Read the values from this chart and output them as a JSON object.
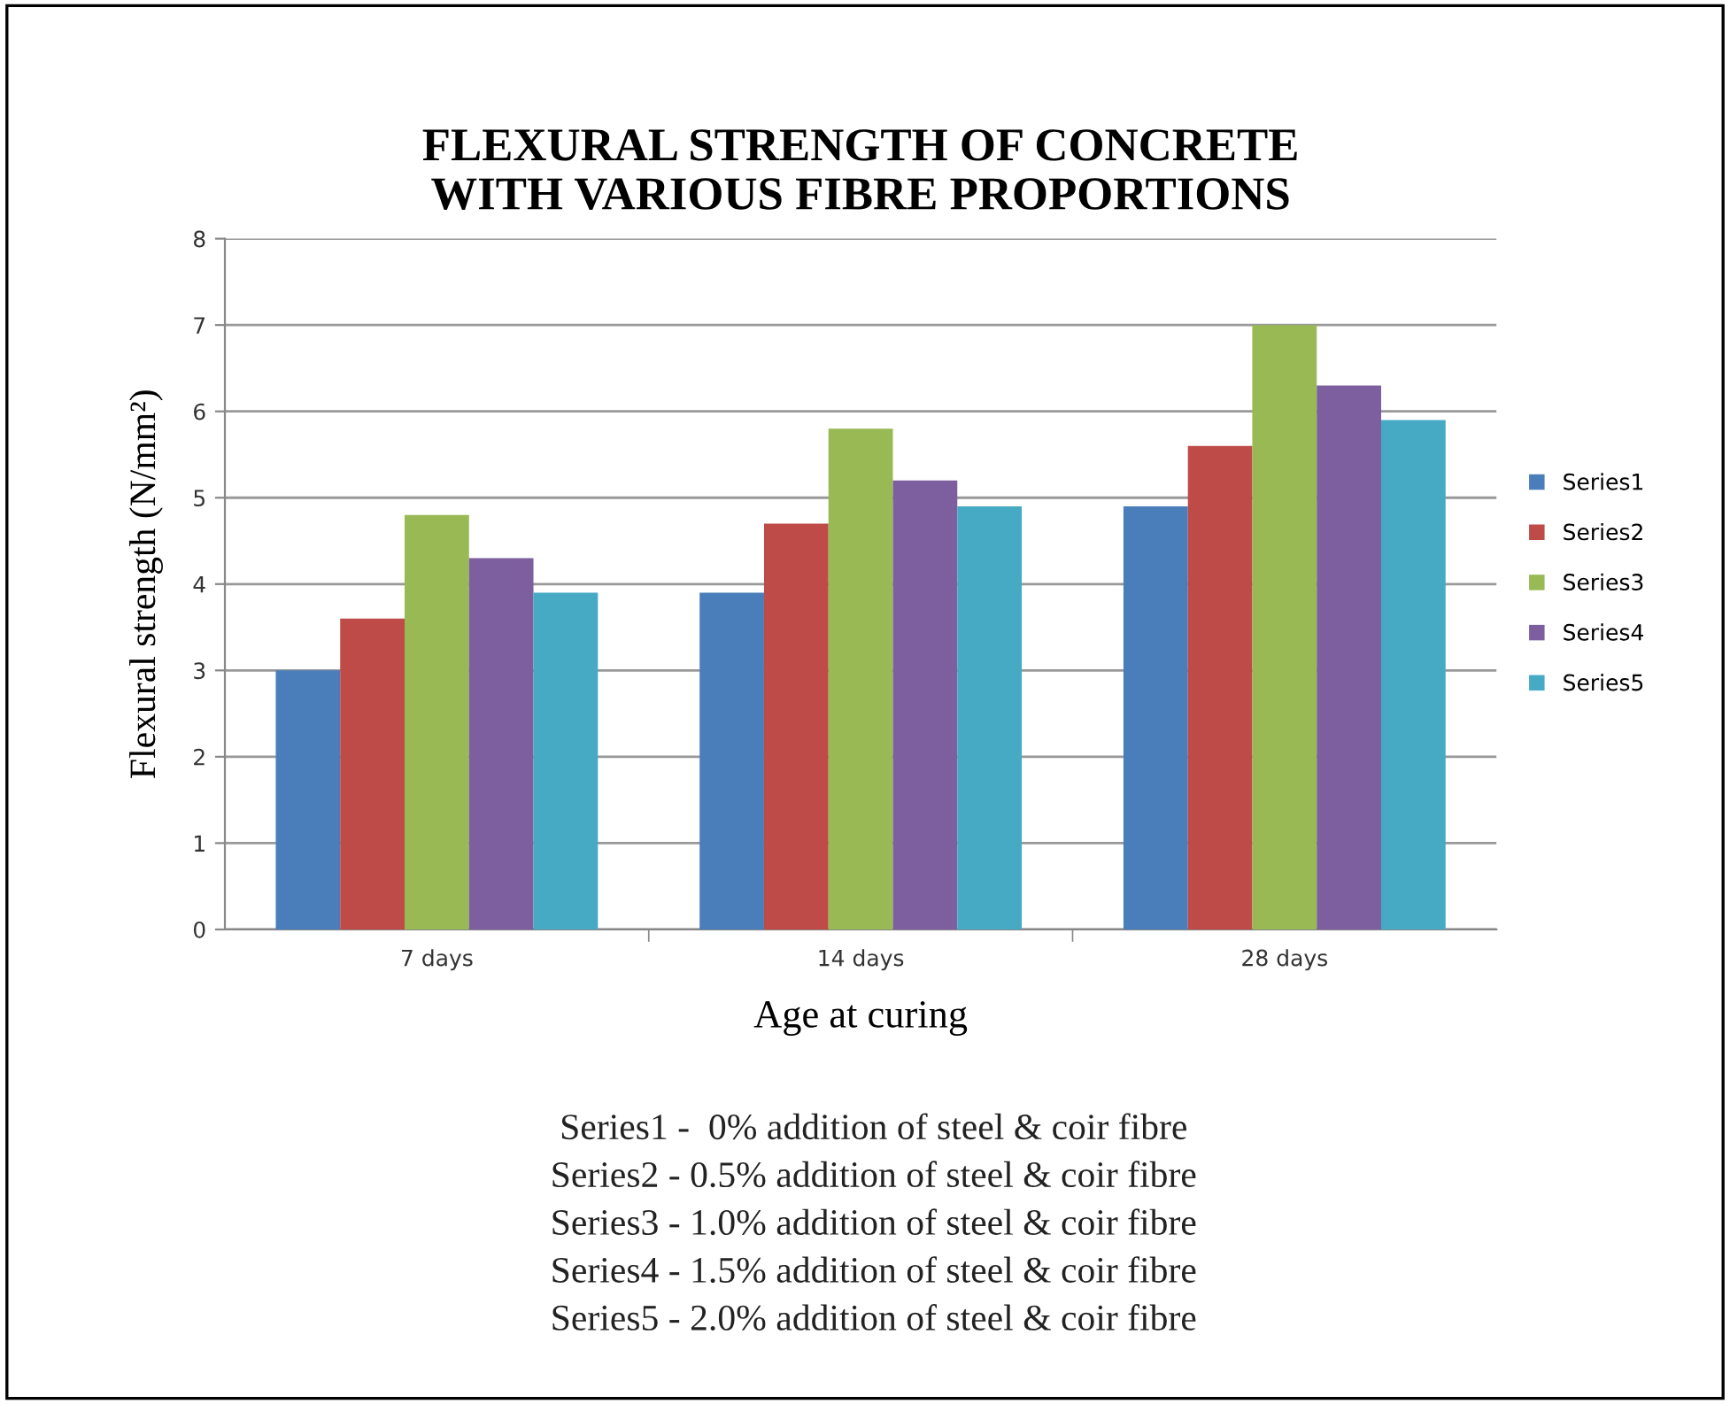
{
  "chart_data": {
    "type": "bar",
    "title": "FLEXURAL STRENGTH OF CONCRETE\nWITH VARIOUS FIBRE PROPORTIONS",
    "xlabel": "Age at curing",
    "ylabel": "Flexural strength (N/mm²)",
    "categories": [
      "7 days",
      "14 days",
      "28 days"
    ],
    "series": [
      {
        "name": "Series1",
        "color": "#4a7ebb",
        "values": [
          3.0,
          3.9,
          4.9
        ]
      },
      {
        "name": "Series2",
        "color": "#be4b48",
        "values": [
          3.6,
          4.7,
          5.6
        ]
      },
      {
        "name": "Series3",
        "color": "#98b954",
        "values": [
          4.8,
          5.8,
          7.0
        ]
      },
      {
        "name": "Series4",
        "color": "#7d5fa0",
        "values": [
          4.3,
          5.2,
          6.3
        ]
      },
      {
        "name": "Series5",
        "color": "#46aac5",
        "values": [
          3.9,
          4.9,
          5.9
        ]
      }
    ],
    "ylim": [
      0,
      8
    ],
    "yticks": [
      0,
      1,
      2,
      3,
      4,
      5,
      6,
      7,
      8
    ],
    "grid": "y",
    "legend": "right",
    "annotations": [
      "Series1 -  0% addition of steel & coir fibre",
      "Series2 - 0.5% addition of steel & coir fibre",
      "Series3 - 1.0% addition of steel & coir fibre",
      "Series4 - 1.5% addition of steel & coir fibre",
      "Series5 - 2.0% addition of steel & coir fibre"
    ]
  }
}
